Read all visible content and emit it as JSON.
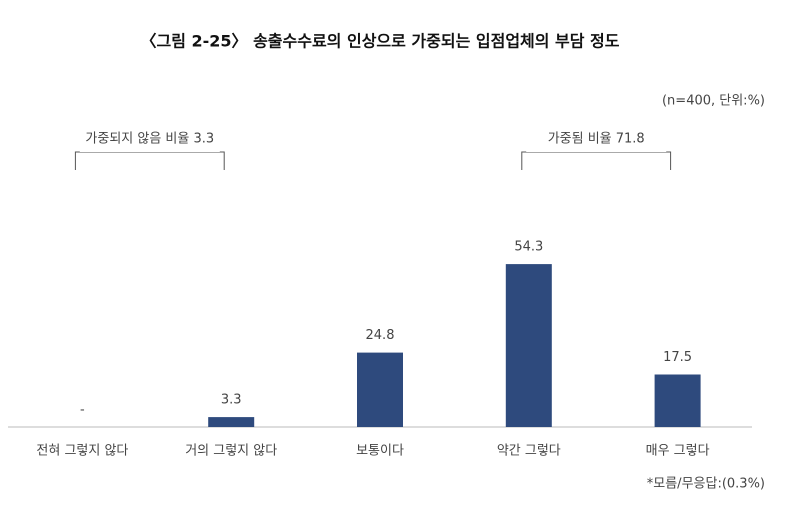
{
  "chart_data": {
    "type": "bar",
    "title": "〈그림 2-25〉 송출수수료의 인상으로 가중되는 입점업체의 부담 정도",
    "subtitle": "(n=400,  단위:%)",
    "categories": [
      "전혀 그렇지 않다",
      "거의 그렇지 않다",
      "보통이다",
      "약간 그렇다",
      "매우 그렇다"
    ],
    "values": [
      0,
      3.3,
      24.8,
      54.3,
      17.5
    ],
    "value_labels": [
      "-",
      "3.3",
      "24.8",
      "54.3",
      "17.5"
    ],
    "color": "#2e4a7d",
    "ylim": [
      0,
      60
    ],
    "annotations": [
      {
        "text": "가중되지 않음 비율 3.3"
      },
      {
        "text": "가중됨 비율 71.8"
      }
    ],
    "note": "*모름/무응답:(0.3%)"
  }
}
